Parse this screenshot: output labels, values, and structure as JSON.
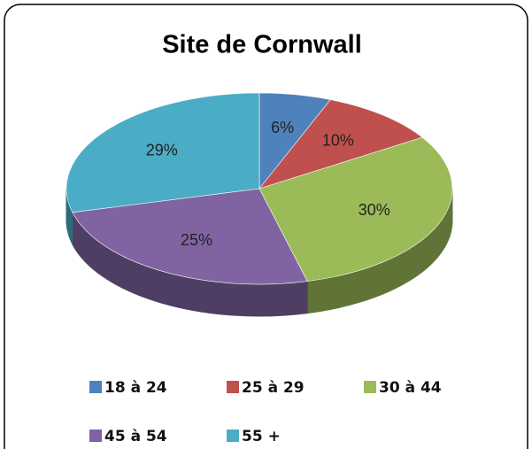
{
  "chart_data": {
    "type": "pie",
    "title": "Site de Cornwall",
    "categories": [
      "18 à 24",
      "25 à 29",
      "30 à 44",
      "45 à 54",
      "55 +"
    ],
    "values": [
      6,
      10,
      30,
      25,
      29
    ],
    "value_labels": [
      "6%",
      "10%",
      "30%",
      "25%",
      "29%"
    ],
    "colors": [
      "#4f81bd",
      "#c0504d",
      "#9bbb59",
      "#8064a2",
      "#4bacc6"
    ],
    "legend": "bottom"
  }
}
